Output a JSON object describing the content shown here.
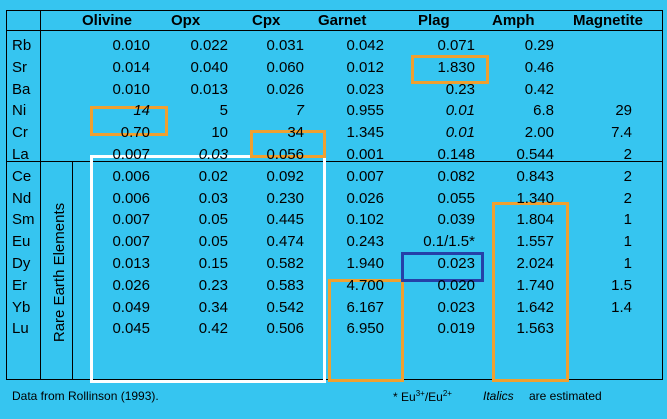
{
  "headers": [
    "Olivine",
    "Opx",
    "Cpx",
    "Garnet",
    "Plag",
    "Amph",
    "Magnetite"
  ],
  "rows": [
    {
      "el": "Rb",
      "v": [
        "0.010",
        "0.022",
        "0.031",
        "0.042",
        "0.071",
        "0.29",
        ""
      ]
    },
    {
      "el": "Sr",
      "v": [
        "0.014",
        "0.040",
        "0.060",
        "0.012",
        "1.830",
        "0.46",
        ""
      ]
    },
    {
      "el": "Ba",
      "v": [
        "0.010",
        "0.013",
        "0.026",
        "0.023",
        "0.23",
        "0.42",
        ""
      ]
    },
    {
      "el": "Ni",
      "v": [
        "14",
        "5",
        "7",
        "0.955",
        "0.01",
        "6.8",
        "29"
      ]
    },
    {
      "el": "Cr",
      "v": [
        "0.70",
        "10",
        "34",
        "1.345",
        "0.01",
        "2.00",
        "7.4"
      ]
    },
    {
      "el": "La",
      "v": [
        "0.007",
        "0.03",
        "0.056",
        "0.001",
        "0.148",
        "0.544",
        "2"
      ]
    },
    {
      "el": "Ce",
      "v": [
        "0.006",
        "0.02",
        "0.092",
        "0.007",
        "0.082",
        "0.843",
        "2"
      ]
    },
    {
      "el": "Nd",
      "v": [
        "0.006",
        "0.03",
        "0.230",
        "0.026",
        "0.055",
        "1.340",
        "2"
      ]
    },
    {
      "el": "Sm",
      "v": [
        "0.007",
        "0.05",
        "0.445",
        "0.102",
        "0.039",
        "1.804",
        "1"
      ]
    },
    {
      "el": "Eu",
      "v": [
        "0.007",
        "0.05",
        "0.474",
        "0.243",
        "0.1/1.5*",
        "1.557",
        "1"
      ]
    },
    {
      "el": "Dy",
      "v": [
        "0.013",
        "0.15",
        "0.582",
        "1.940",
        "0.023",
        "2.024",
        "1"
      ]
    },
    {
      "el": "Er",
      "v": [
        "0.026",
        "0.23",
        "0.583",
        "4.700",
        "0.020",
        "1.740",
        "1.5"
      ]
    },
    {
      "el": "Yb",
      "v": [
        "0.049",
        "0.34",
        "0.542",
        "6.167",
        "0.023",
        "1.642",
        "1.4"
      ]
    },
    {
      "el": "Lu",
      "v": [
        "0.045",
        "0.42",
        "0.506",
        "6.950",
        "0.019",
        "1.563",
        ""
      ]
    }
  ],
  "italic_cells": [
    [
      3,
      0
    ],
    [
      3,
      2
    ],
    [
      3,
      4
    ],
    [
      4,
      4
    ],
    [
      5,
      1
    ]
  ],
  "ree_label": "Rare Earth Elements",
  "footer": {
    "source": "Data from Rollinson (1993).",
    "eu_note": "* Eu3+/Eu2+",
    "italics_word": "Italics",
    "italics_rest": "are estimated"
  },
  "colors": {
    "background": "#36C5F0",
    "highlight_orange": "#F0A030",
    "highlight_white": "#FFFFFF",
    "highlight_blue": "#2540A8"
  }
}
